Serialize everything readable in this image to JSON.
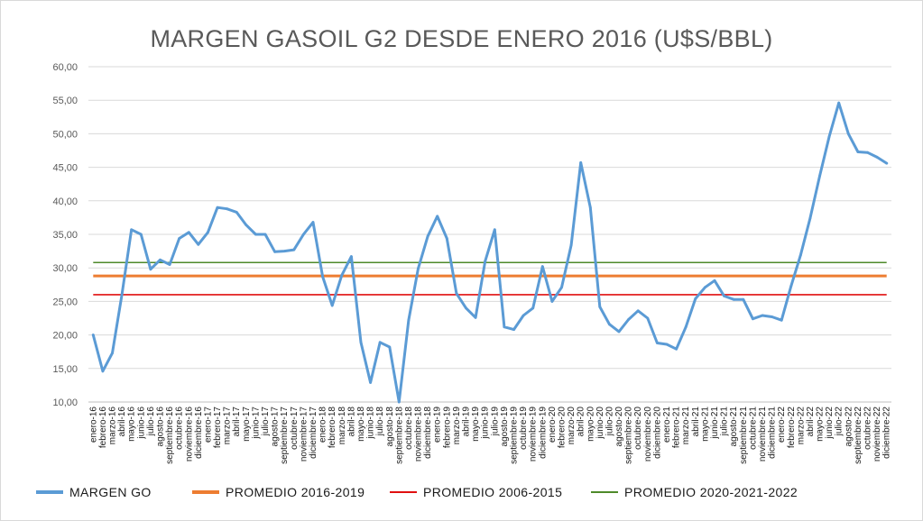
{
  "chart_data": {
    "type": "line",
    "title": "MARGEN GASOIL G2 DESDE ENERO 2016 (U$S/BBL)",
    "xlabel": "",
    "ylabel": "",
    "ylim": [
      10,
      60
    ],
    "yticks": [
      "10,00",
      "15,00",
      "20,00",
      "25,00",
      "30,00",
      "35,00",
      "40,00",
      "45,00",
      "50,00",
      "55,00",
      "60,00"
    ],
    "categories": [
      "enero-16",
      "febrero-16",
      "marzo-16",
      "abril-16",
      "mayo-16",
      "junio-16",
      "julio-16",
      "agosto-16",
      "septiembre-16",
      "octubre-16",
      "noviembre-16",
      "diciembre-16",
      "enero-17",
      "febrero-17",
      "marzo-17",
      "abril-17",
      "mayo-17",
      "junio-17",
      "julio-17",
      "agosto-17",
      "septiembre-17",
      "octubre-17",
      "noviembre-17",
      "diciembre-17",
      "enero-18",
      "febrero-18",
      "marzo-18",
      "abril-18",
      "mayo-18",
      "junio-18",
      "julio-18",
      "agosto-18",
      "septiembre-18",
      "octubre-18",
      "noviembre-18",
      "diciembre-18",
      "enero-19",
      "febrero-19",
      "marzo-19",
      "abril-19",
      "mayo-19",
      "junio-19",
      "julio-19",
      "agosto-19",
      "septiembre-19",
      "octubre-19",
      "noviembre-19",
      "diciembre-19",
      "enero-20",
      "febrero-20",
      "marzo-20",
      "abril-20",
      "mayo-20",
      "junio-20",
      "julio-20",
      "agosto-20",
      "septiembre-20",
      "octubre-20",
      "noviembre-20",
      "diciembre-20",
      "enero-21",
      "febrero-21",
      "marzo-21",
      "abril-21",
      "mayo-21",
      "junio-21",
      "julio-21",
      "agosto-21",
      "septiembre-21",
      "octubre-21",
      "noviembre-21",
      "diciembre-21",
      "enero-22",
      "febrero-22",
      "marzo-22",
      "abril-22",
      "mayo-22",
      "junio-22",
      "julio-22",
      "agosto-22",
      "septiembre-22",
      "octubre-22",
      "noviembre-22",
      "diciembre-22"
    ],
    "series": [
      {
        "name": "MARGEN GO",
        "color": "#5b9bd5",
        "values": [
          20.0,
          14.6,
          17.3,
          26.0,
          35.7,
          35.0,
          29.8,
          31.2,
          30.5,
          34.4,
          35.3,
          33.5,
          35.3,
          39.0,
          38.8,
          38.3,
          36.4,
          35.0,
          35.0,
          32.4,
          32.5,
          32.7,
          35.0,
          36.8,
          28.7,
          24.4,
          28.9,
          31.7,
          18.9,
          12.9,
          18.9,
          18.2,
          10.0,
          22.2,
          29.9,
          34.7,
          37.7,
          34.4,
          26.2,
          24.0,
          22.6,
          31.0,
          35.7,
          21.2,
          20.8,
          22.9,
          24.0,
          30.2,
          25.0,
          27.1,
          33.4,
          45.7,
          39.0,
          24.2,
          21.6,
          20.5,
          22.3,
          23.6,
          22.5,
          18.8,
          18.6,
          17.9,
          21.2,
          25.4,
          27.1,
          28.1,
          25.8,
          25.3,
          25.3,
          22.4,
          22.9,
          22.7,
          22.2,
          27.3,
          31.9,
          37.4,
          43.7,
          49.6,
          54.6,
          50.0,
          47.3,
          47.2,
          46.5,
          45.6
        ]
      },
      {
        "name": "PROMEDIO 2016-2019",
        "color": "#ed7d31",
        "constant": 28.8
      },
      {
        "name": "PROMEDIO 2006-2015",
        "color": "#e01010",
        "constant": 26.0
      },
      {
        "name": "PROMEDIO 2020-2021-2022",
        "color": "#4e8a2a",
        "constant": 30.8
      }
    ],
    "legend": "bottom"
  }
}
